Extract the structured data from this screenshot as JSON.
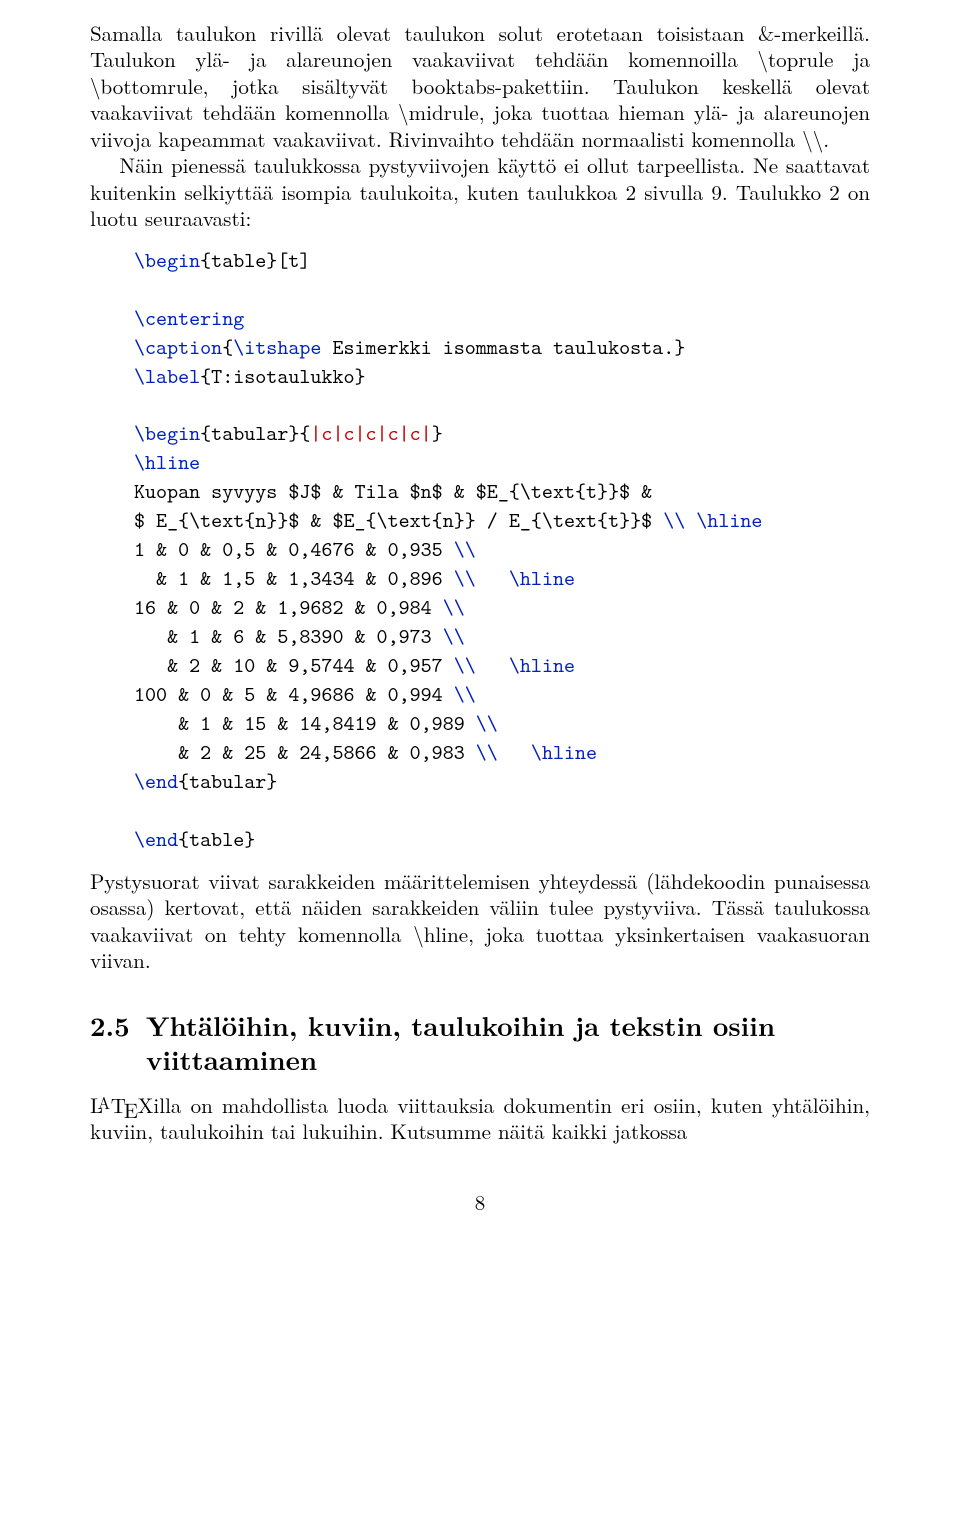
{
  "colors": {
    "cmd": "#0020c0",
    "red": "#c00000",
    "text": "#000000",
    "background": "#ffffff"
  },
  "font": {
    "body_family": "Latin Modern Roman / Computer Modern (serif)",
    "mono_family": "Latin Modern Mono / Courier New (monospace)",
    "body_size_pt": 11,
    "section_size_pt": 14
  },
  "para1_prefix": "Samalla taulukon rivillä olevat taulukon solut erotetaan toisistaan &-merkeillä. Taulukon ylä- ja alareunojen vaakaviivat tehdään komennoilla ",
  "para1_cmd1": "\\toprule",
  "para1_mid1": " ja ",
  "para1_cmd2": "\\bottomrule",
  "para1_mid2": ", jotka sisältyvät booktabs-pakettiin. Taulukon keskellä olevat vaakaviivat tehdään komennolla ",
  "para1_cmd3": "\\midrule",
  "para1_mid3": ", joka tuottaa hieman ylä- ja alareunojen viivoja kapeammat vaakaviivat. Rivinvaihto tehdään normaalisti komennolla ",
  "para1_cmd4": "\\\\",
  "para1_end": ".",
  "para2": "Näin pienessä taulukkossa pystyviivojen käyttö ei ollut tarpeellista. Ne saattavat kuitenkin selkiyttää isompia taulukoita, kuten taulukkoa 2 sivulla 9. Taulukko 2 on luotu seuraavasti:",
  "code": {
    "l1_a": "\\begin",
    "l1_b": "{table}[t]",
    "l2_a": "\\centering",
    "l3_a": "\\caption",
    "l3_b": "{",
    "l3_c": "\\itshape",
    "l3_d": " Esimerkki isommasta taulukosta.}",
    "l4_a": "\\label",
    "l4_b": "{T:isotaulukko}",
    "l5_a": "\\begin",
    "l5_b": "{tabular}{",
    "l5_c": "|c|c|c|c|c|",
    "l5_d": "}",
    "l6_a": "\\hline",
    "l7": "Kuopan syvyys $J$ & Tila $n$ & $E_{\\text{t}}$ &",
    "l8_a": "$ E_{\\text{n}}$ & $E_{\\text{n}} / E_{\\text{t}}$ ",
    "l8_b": "\\\\ \\hline",
    "l9_a": "1 & 0 & 0,5 & 0,4676 & 0,935 ",
    "l9_b": "\\\\",
    "l10_a": "  & 1 & 1,5 & 1,3434 & 0,896 ",
    "l10_b": "\\\\",
    "l10_c": "   \\hline",
    "l11_a": "16 & 0 & 2 & 1,9682 & 0,984 ",
    "l11_b": "\\\\",
    "l12_a": "   & 1 & 6 & 5,8390 & 0,973 ",
    "l12_b": "\\\\",
    "l13_a": "   & 2 & 10 & 9,5744 & 0,957 ",
    "l13_b": "\\\\",
    "l13_c": "   \\hline",
    "l14_a": "100 & 0 & 5 & 4,9686 & 0,994 ",
    "l14_b": "\\\\",
    "l15_a": "    & 1 & 15 & 14,8419 & 0,989 ",
    "l15_b": "\\\\",
    "l16_a": "    & 2 & 25 & 24,5866 & 0,983 ",
    "l16_b": "\\\\",
    "l16_c": "   \\hline",
    "l17_a": "\\end",
    "l17_b": "{tabular}",
    "l18_a": "\\end",
    "l18_b": "{table}"
  },
  "para3_a": "Pystysuorat viivat sarakkeiden määrittelemisen yhteydessä (lähdekoodin punaisessa osassa) kertovat, että näiden sarakkeiden väliin tulee pystyviiva. Tässä taulukossa vaakaviivat on tehty komennolla ",
  "para3_cmd": "\\hline",
  "para3_b": ", joka tuottaa yksinkertaisen vaakasuoran viivan.",
  "section_num": "2.5",
  "section_title": "Yhtälöihin, kuviin, taulukoihin ja tekstin osiin viittaaminen",
  "para4_a": "illa on mahdollista luoda viittauksia dokumentin eri osiin, kuten yhtälöihin, kuviin, taulukoihin tai lukuihin. Kutsumme näitä kaikki jatkossa",
  "pagenum": "8"
}
